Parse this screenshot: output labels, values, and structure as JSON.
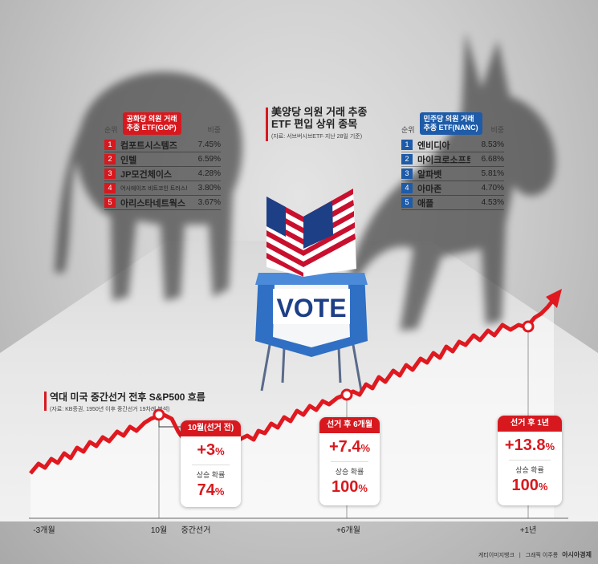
{
  "gop_table": {
    "header_rank": "순위",
    "badge_line1": "공화당 의원 거래",
    "badge_line2": "추종 ETF(GOP)",
    "header_weight": "비중",
    "color": "#d7191f",
    "rows": [
      {
        "rank": "1",
        "name": "컴포트시스템즈",
        "weight": "7.45%"
      },
      {
        "rank": "2",
        "name": "인텔",
        "weight": "6.59%"
      },
      {
        "rank": "3",
        "name": "JP모건체이스",
        "weight": "4.28%"
      },
      {
        "rank": "4",
        "name": "어시에이즈 비트코인 트러스트 ETF",
        "weight": "3.80%"
      },
      {
        "rank": "5",
        "name": "아리스타네트웍스",
        "weight": "3.67%"
      }
    ]
  },
  "nanc_table": {
    "header_rank": "순위",
    "badge_line1": "민주당 의원 거래",
    "badge_line2": "추종 ETF(NANC)",
    "header_weight": "비중",
    "color": "#1e5ba8",
    "rows": [
      {
        "rank": "1",
        "name": "엔비디아",
        "weight": "8.53%"
      },
      {
        "rank": "2",
        "name": "마이크로소프트",
        "weight": "6.68%"
      },
      {
        "rank": "3",
        "name": "알파벳",
        "weight": "5.81%"
      },
      {
        "rank": "4",
        "name": "아마존",
        "weight": "4.70%"
      },
      {
        "rank": "5",
        "name": "애플",
        "weight": "4.53%"
      }
    ]
  },
  "center_title": {
    "line1": "美양당 의원 거래 추종",
    "line2": "ETF 편입 상위 종목",
    "source": "(자료: 서브버시브ETF·지난 28일 기준)"
  },
  "booth": {
    "vote_text": "VOTE"
  },
  "chart_data": {
    "type": "line",
    "title": "역대 미국 중간선거 전후 S&P500 흐름",
    "subtitle": "(자료: KB증권, 1950년 이후 중간선거 19차례 분석)",
    "x_labels": [
      "-3개월",
      "10월",
      "중간선거",
      "+6개월",
      "+1년"
    ],
    "callouts": [
      {
        "period": "10월(선거 전)",
        "return": "+3",
        "unit": "%",
        "prob_label": "상승 확률",
        "prob": "74",
        "prob_unit": "%"
      },
      {
        "period": "선거 후 6개월",
        "return": "+7.4",
        "unit": "%",
        "prob_label": "상승 확률",
        "prob": "100",
        "prob_unit": "%"
      },
      {
        "period": "선거 후 1년",
        "return": "+13.8",
        "unit": "%",
        "prob_label": "상승 확률",
        "prob": "100",
        "prob_unit": "%"
      }
    ],
    "line_color": "#e0181f"
  },
  "credit": {
    "left": "게티이미지뱅크",
    "sep": "|",
    "mid": "그래픽 이주룡",
    "brand": "아시아경제"
  }
}
